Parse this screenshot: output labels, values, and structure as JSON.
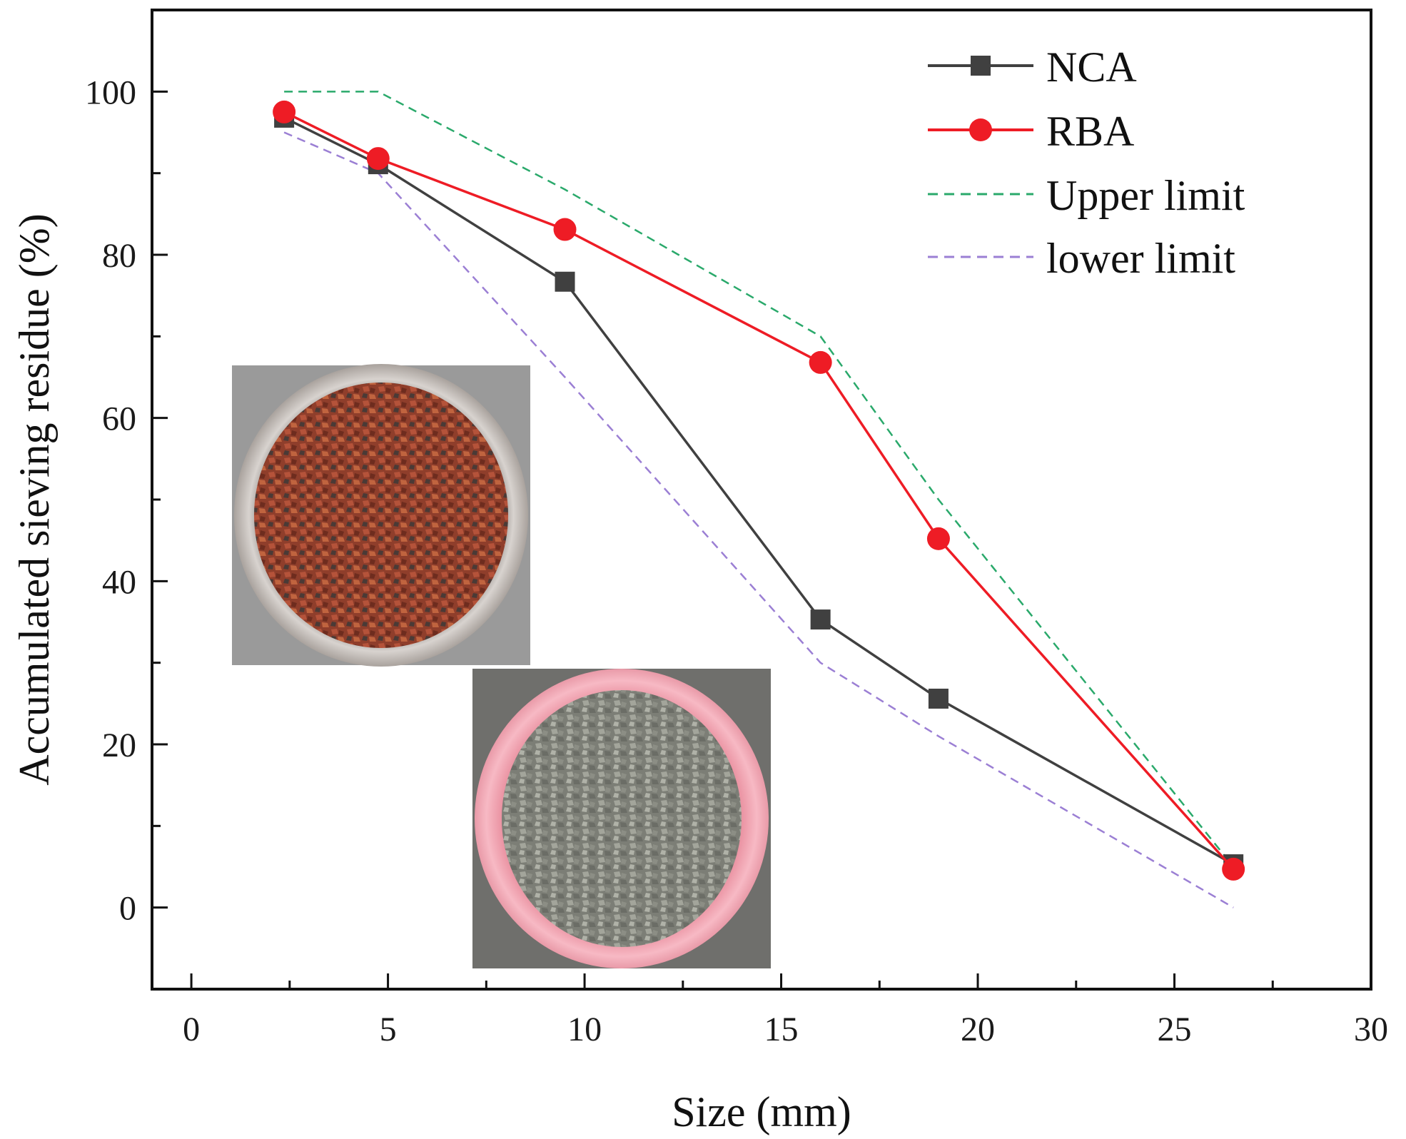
{
  "chart_data": {
    "type": "line",
    "title": "",
    "xlabel": "Size (mm)",
    "ylabel": "Accumulated sieving residue (%)",
    "xlim": [
      -1,
      30
    ],
    "ylim": [
      -10,
      110
    ],
    "xticks": [
      0,
      5,
      10,
      15,
      20,
      25,
      30
    ],
    "yticks": [
      0,
      20,
      40,
      60,
      80,
      100
    ],
    "xtick_labels": [
      "0",
      "5",
      "10",
      "15",
      "20",
      "25",
      "30"
    ],
    "ytick_labels": [
      "0",
      "20",
      "40",
      "60",
      "80",
      "100"
    ],
    "grid": false,
    "legend_position": "top-right",
    "series": [
      {
        "name": "NCA",
        "color": "#404040",
        "marker": "square",
        "line_style": "solid",
        "x": [
          2.36,
          4.75,
          9.5,
          16,
          19,
          26.5
        ],
        "y": [
          96.8,
          91.1,
          76.7,
          35.3,
          25.6,
          5.3
        ]
      },
      {
        "name": "RBA",
        "color": "#ee1c25",
        "marker": "circle",
        "line_style": "solid",
        "x": [
          2.36,
          4.75,
          9.5,
          16,
          19,
          26.5
        ],
        "y": [
          97.5,
          91.8,
          83.1,
          66.8,
          45.2,
          4.7
        ]
      },
      {
        "name": "Upper limit",
        "color": "#2aa96b",
        "marker": "none",
        "line_style": "dashed",
        "x": [
          2.36,
          4.75,
          9.5,
          16,
          19,
          26.5
        ],
        "y": [
          100,
          100,
          88,
          70,
          50,
          5
        ]
      },
      {
        "name": "lower limit",
        "color": "#9b7fd4",
        "marker": "none",
        "line_style": "dashed",
        "x": [
          2.36,
          4.75,
          9.5,
          16,
          19,
          26.5
        ],
        "y": [
          95,
          90,
          65,
          30,
          21,
          0
        ]
      }
    ]
  },
  "insets": [
    {
      "name": "rba-sample-photo",
      "bowl_color": "#b3adaa",
      "material_color": "#9a4530"
    },
    {
      "name": "nca-sample-photo",
      "bowl_color": "#f2a6b2",
      "material_color": "#8e9086"
    }
  ]
}
